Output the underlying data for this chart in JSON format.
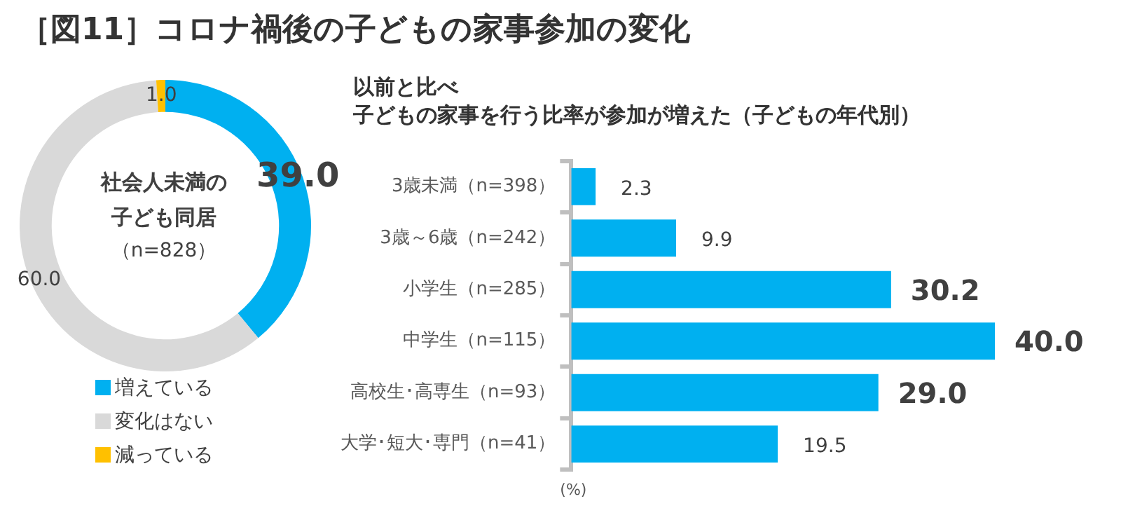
{
  "chart_data": [
    {
      "type": "donut",
      "title": "［図11］コロナ禍後の子どもの家事参加の変化",
      "categories": [
        "増えている",
        "変化はない",
        "減っている"
      ],
      "values": [
        39.0,
        60.0,
        1.0
      ],
      "value_labels": [
        "39.0",
        "60.0",
        "1.0"
      ],
      "colors": [
        "#00b0f0",
        "#d9d9d9",
        "#ffc000"
      ],
      "legend": "bottom left",
      "annotations": [
        "社会人未満の子ども同居",
        "（n=828）"
      ]
    },
    {
      "type": "bar",
      "orientation": "horizontal",
      "title": "以前と比べ",
      "subtitle": "子どもの家事を行う比率が参加が増えた（子どもの年代別）",
      "categories": [
        "3歳未満（n=398）",
        "3歳～6歳（n=242）",
        "小学生（n=285）",
        "中学生（n=115）",
        "高校生･高専生（n=93）",
        "大学･短大･専門（n=41）"
      ],
      "values": [
        2.3,
        9.9,
        30.2,
        40.0,
        29.0,
        19.5
      ],
      "value_labels": [
        "2.3",
        "9.9",
        "30.2",
        "40.0",
        "29.0",
        "19.5"
      ],
      "color": "#00b0f0",
      "tick_labels": "y",
      "xlabel": "(%)"
    }
  ]
}
